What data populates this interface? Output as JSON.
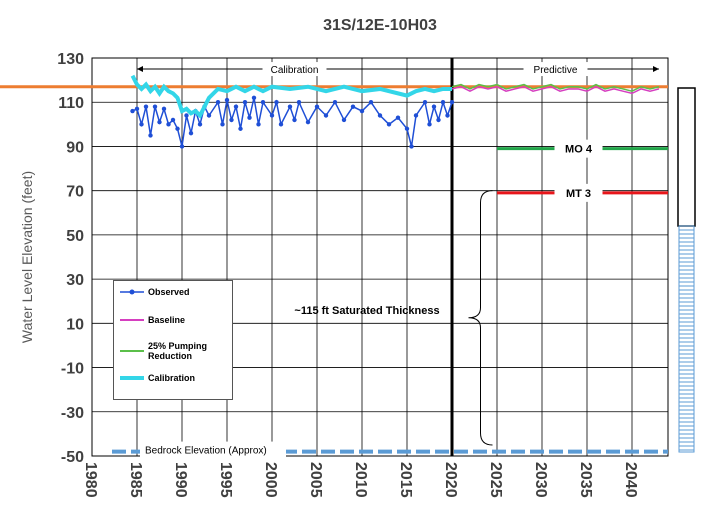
{
  "chart_data": {
    "type": "line",
    "title": "31S/12E-10H03",
    "y_label": "Water Level Elevation (feet)",
    "xlim": [
      1980,
      2044
    ],
    "ylim": [
      -50,
      130
    ],
    "xticks": [
      1980,
      1985,
      1990,
      1995,
      2000,
      2005,
      2010,
      2015,
      2020,
      2025,
      2030,
      2035,
      2040
    ],
    "yticks": [
      -50,
      -30,
      -10,
      10,
      30,
      50,
      70,
      90,
      110,
      130
    ],
    "grid": true,
    "divider_x": 2020,
    "period_labels": [
      {
        "text": "Calibration",
        "x": [
          1985,
          2020
        ],
        "y": 125
      },
      {
        "text": "Predictive",
        "x": [
          2020,
          2043
        ],
        "y": 125
      }
    ],
    "series": [
      {
        "name": "Observed",
        "color": "#1f4fd6",
        "markers": true,
        "x": [
          1984.5,
          1985,
          1985.5,
          1986,
          1986.5,
          1987,
          1987.5,
          1988,
          1988.5,
          1989,
          1989.5,
          1990,
          1990.5,
          1991,
          1991.5,
          1992,
          1992.5,
          1993,
          1994,
          1994.5,
          1995,
          1995.5,
          1996,
          1996.5,
          1997,
          1997.5,
          1998,
          1998.5,
          1999,
          2000,
          2000.5,
          2001,
          2002,
          2002.5,
          2003,
          2004,
          2005,
          2006,
          2007,
          2008,
          2009,
          2010,
          2011,
          2012,
          2013,
          2014,
          2015,
          2015.5,
          2016,
          2017,
          2017.5,
          2018,
          2018.5,
          2019,
          2019.5,
          2020
        ],
        "values": [
          106,
          107,
          100,
          108,
          95,
          108,
          101,
          107,
          100,
          102,
          98,
          90,
          104,
          96,
          106,
          100,
          108,
          104,
          110,
          100,
          111,
          102,
          108,
          98,
          110,
          103,
          112,
          100,
          110,
          104,
          110,
          100,
          108,
          102,
          110,
          101,
          108,
          104,
          110,
          102,
          108,
          106,
          110,
          104,
          100,
          103,
          98,
          90,
          104,
          110,
          100,
          108,
          102,
          110,
          104,
          110
        ]
      },
      {
        "name": "Baseline",
        "color": "#d63fc0",
        "x": [
          2020,
          2021,
          2022,
          2023,
          2024,
          2025,
          2026,
          2027,
          2028,
          2029,
          2030,
          2031,
          2032,
          2033,
          2034,
          2035,
          2036,
          2037,
          2038,
          2039,
          2040,
          2041,
          2042,
          2043
        ],
        "values": [
          116,
          117,
          115,
          117,
          116,
          117,
          115,
          116,
          117,
          115,
          116,
          117,
          115,
          116,
          116,
          115,
          117,
          115,
          116,
          115,
          114,
          116,
          115,
          116
        ]
      },
      {
        "name": "25% Pumping Reduction",
        "color": "#5bbf4a",
        "x": [
          2020,
          2021,
          2022,
          2023,
          2024,
          2025,
          2026,
          2027,
          2028,
          2029,
          2030,
          2031,
          2032,
          2033,
          2034,
          2035,
          2036,
          2037,
          2038,
          2039,
          2040,
          2041,
          2042,
          2043
        ],
        "values": [
          117,
          118,
          116,
          118,
          117,
          118,
          116,
          117,
          118,
          116,
          117,
          118,
          116,
          117,
          117,
          116,
          118,
          116,
          117,
          116,
          115,
          117,
          116,
          117
        ]
      },
      {
        "name": "Calibration",
        "color": "#33d6e8",
        "x": [
          1984.5,
          1985,
          1985.5,
          1986,
          1986.5,
          1987,
          1987.5,
          1988,
          1988.5,
          1989,
          1989.5,
          1990,
          1990.5,
          1991,
          1991.5,
          1992,
          1992.5,
          1993,
          1994,
          1995,
          1996,
          1997,
          1998,
          1999,
          2000,
          2002,
          2004,
          2006,
          2008,
          2010,
          2012,
          2014,
          2015,
          2016,
          2017,
          2018,
          2019,
          2020
        ],
        "values": [
          122,
          118,
          116,
          118,
          115,
          117,
          114,
          117,
          115,
          114,
          112,
          106,
          107,
          105,
          106,
          104,
          108,
          112,
          116,
          115,
          117,
          115,
          117,
          115,
          117,
          116,
          117,
          115,
          117,
          115,
          116,
          114,
          113,
          115,
          116,
          115,
          116,
          116
        ]
      }
    ],
    "reference_lines": [
      {
        "value": 117,
        "color": "#ed7d31"
      },
      {
        "label": "MO 4",
        "value": 89,
        "x": [
          2025,
          2044
        ],
        "color": "#22a64a"
      },
      {
        "label": "MT 3",
        "value": 69,
        "x": [
          2025,
          2044
        ],
        "color": "#e8161b"
      }
    ],
    "bedrock": {
      "label": "Bedrock Elevation (Approx)",
      "value": -48,
      "color": "#5b9bd5"
    },
    "thickness_label": "~115 ft Saturated Thickness"
  }
}
